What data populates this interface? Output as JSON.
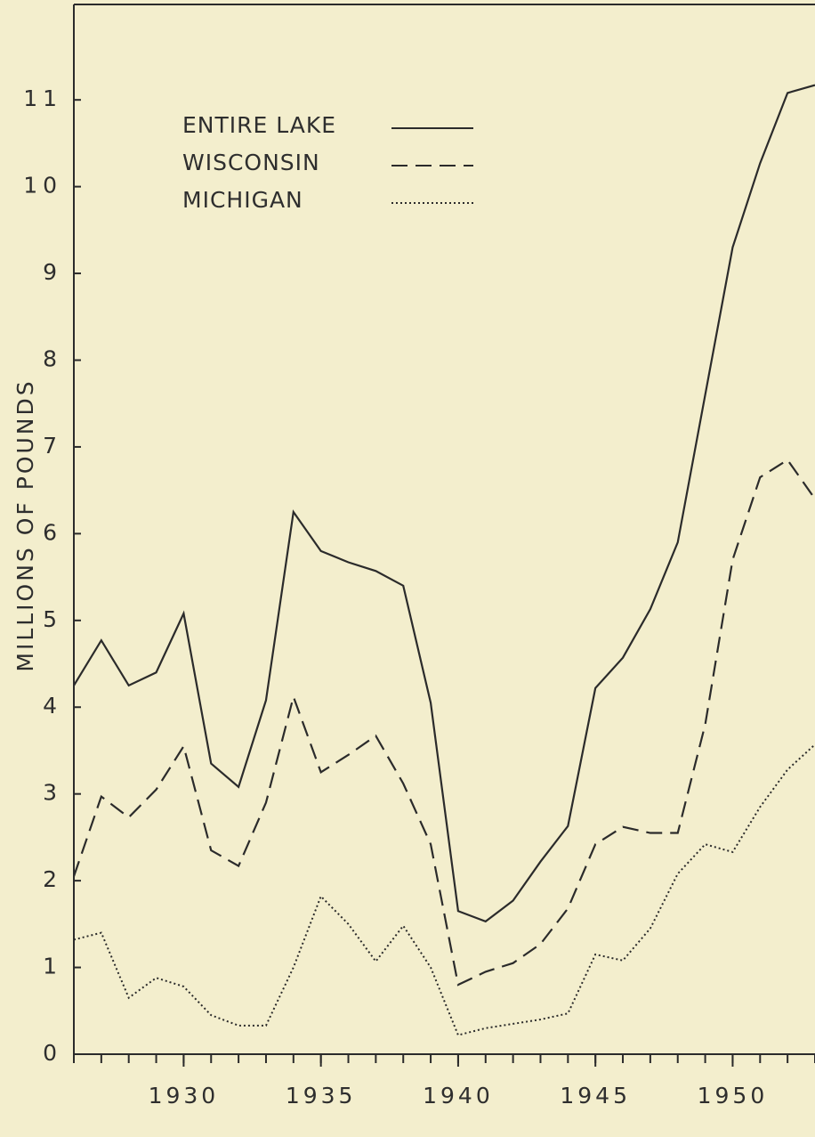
{
  "chart_data": {
    "type": "line",
    "y_label": "MILLIONS OF POUNDS",
    "x": [
      1926,
      1927,
      1928,
      1929,
      1930,
      1931,
      1932,
      1933,
      1934,
      1935,
      1936,
      1937,
      1938,
      1939,
      1940,
      1941,
      1942,
      1943,
      1944,
      1945,
      1946,
      1947,
      1948,
      1949,
      1950,
      1951,
      1952,
      1953
    ],
    "series": [
      {
        "name": "ENTIRE LAKE",
        "color": "#2b2b2b",
        "linestyle": "solid",
        "values": [
          4.25,
          4.77,
          4.25,
          4.4,
          5.08,
          3.35,
          3.08,
          4.08,
          6.25,
          5.8,
          5.67,
          5.57,
          5.4,
          4.05,
          1.65,
          1.53,
          1.77,
          2.22,
          2.63,
          4.22,
          4.57,
          5.13,
          5.9,
          7.6,
          9.3,
          10.27,
          11.08,
          11.17
        ]
      },
      {
        "name": "WISCONSIN",
        "color": "#2b2b2b",
        "linestyle": "dashed",
        "values": [
          2.05,
          2.97,
          2.73,
          3.05,
          3.55,
          2.35,
          2.17,
          2.9,
          4.12,
          3.25,
          3.45,
          3.67,
          3.12,
          2.42,
          0.8,
          0.95,
          1.05,
          1.27,
          1.68,
          2.42,
          2.62,
          2.55,
          2.55,
          3.8,
          5.7,
          6.65,
          6.85,
          6.4
        ]
      },
      {
        "name": "MICHIGAN",
        "color": "#2b2b2b",
        "linestyle": "dotted",
        "values": [
          1.32,
          1.4,
          0.65,
          0.88,
          0.78,
          0.45,
          0.33,
          0.33,
          1.0,
          1.82,
          1.5,
          1.07,
          1.48,
          1.0,
          0.22,
          0.3,
          0.35,
          0.4,
          0.47,
          1.15,
          1.08,
          1.45,
          2.08,
          2.42,
          2.33,
          2.85,
          3.28,
          3.57
        ]
      }
    ],
    "xlim": [
      1926,
      1953
    ],
    "xticks": [
      1930,
      1935,
      1940,
      1945,
      1950
    ],
    "ylim": [
      0,
      12.1
    ],
    "yticks": [
      0,
      1,
      2,
      3,
      4,
      5,
      6,
      7,
      8,
      9,
      10,
      11
    ],
    "grid": false,
    "legend": "upper left"
  }
}
